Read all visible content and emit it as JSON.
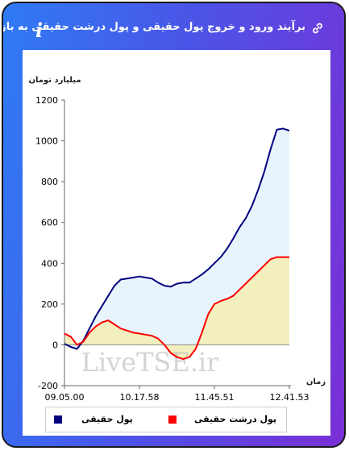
{
  "header": {
    "title": "برآیند ورود و خروج پول حقیقی و پول درشت حقیقی به بازار",
    "link_icon": "link-icon",
    "info_icon": "info-icon",
    "info_glyph": "i"
  },
  "watermark": "LiveTSE.ir",
  "chart_data": {
    "type": "area",
    "ylabel": "میلیارد تومان",
    "xlabel": "زمان",
    "ylim": [
      -200,
      1200
    ],
    "yticks": [
      -200,
      0,
      200,
      400,
      600,
      800,
      1000,
      1200
    ],
    "x_tick_labels": [
      "09.05.00",
      "10.17.58",
      "11.45.51",
      "12.41.53"
    ],
    "grid": false,
    "legend_position": "bottom",
    "series": [
      {
        "name": "پول حقیقی",
        "color": "#000080",
        "fill": "#e8f4fb",
        "values": [
          5,
          -10,
          -20,
          20,
          80,
          140,
          190,
          240,
          290,
          320,
          325,
          330,
          335,
          330,
          325,
          305,
          290,
          285,
          300,
          305,
          305,
          325,
          345,
          370,
          400,
          430,
          470,
          520,
          575,
          620,
          680,
          760,
          850,
          960,
          1055,
          1060,
          1050
        ]
      },
      {
        "name": "پول درشت حقیقی",
        "color": "#ff0000",
        "fill": "#f3eebc",
        "values": [
          55,
          40,
          0,
          15,
          60,
          90,
          110,
          120,
          100,
          80,
          70,
          60,
          55,
          50,
          45,
          30,
          0,
          -40,
          -60,
          -70,
          -60,
          -20,
          60,
          150,
          200,
          215,
          225,
          240,
          270,
          300,
          330,
          360,
          390,
          420,
          430,
          430,
          430
        ]
      }
    ]
  }
}
